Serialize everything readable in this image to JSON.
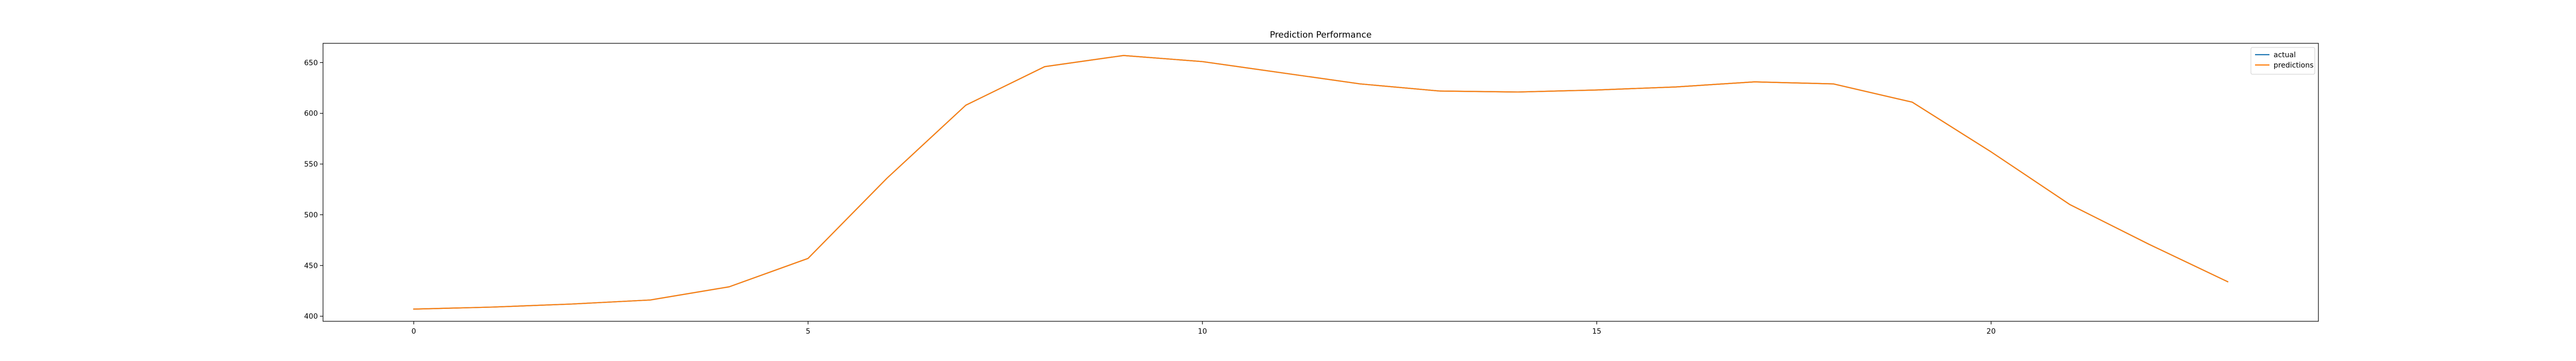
{
  "chart_data": {
    "type": "line",
    "title": "Prediction Performance",
    "xlabel": "",
    "ylabel": "",
    "xlim": [
      -1.15,
      24.15
    ],
    "ylim": [
      395,
      669
    ],
    "xticks": [
      0,
      5,
      10,
      15,
      20
    ],
    "yticks": [
      400,
      450,
      500,
      550,
      600,
      650
    ],
    "grid": false,
    "legend_position": "top-right",
    "x": [
      0,
      1,
      2,
      3,
      4,
      5,
      6,
      7,
      8,
      9,
      10,
      11,
      12,
      13,
      14,
      15,
      16,
      17,
      18,
      19,
      20,
      21,
      22,
      23
    ],
    "series": [
      {
        "name": "actual",
        "color": "#1f77b4",
        "values": [
          407,
          409,
          412,
          416,
          429,
          457,
          536,
          608,
          646,
          657,
          651,
          640,
          629,
          622,
          621,
          623,
          626,
          631,
          629,
          611,
          562,
          510,
          471,
          434
        ]
      },
      {
        "name": "predictions",
        "color": "#ff7f0e",
        "values": [
          407,
          409,
          412,
          416,
          429,
          457,
          536,
          608,
          646,
          657,
          651,
          640,
          629,
          622,
          621,
          623,
          626,
          631,
          629,
          611,
          562,
          510,
          471,
          434
        ]
      }
    ]
  }
}
